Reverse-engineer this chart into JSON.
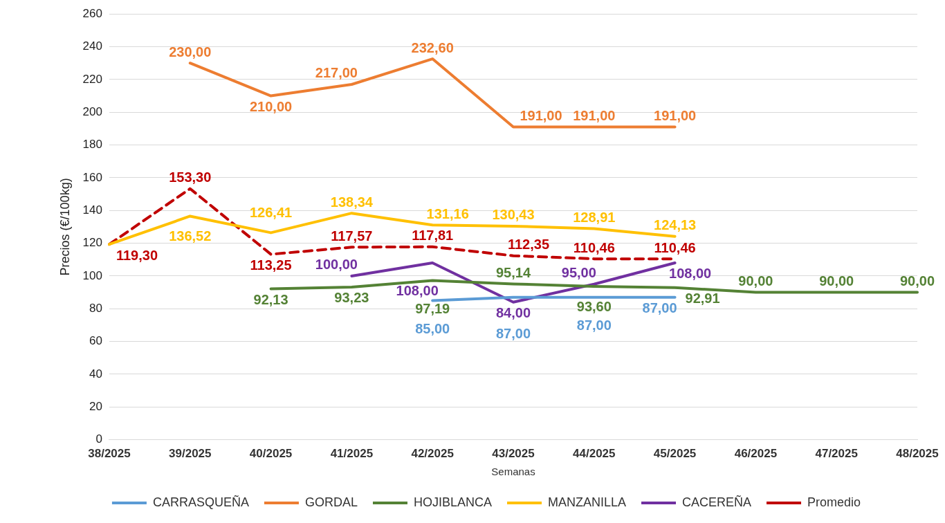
{
  "chart_data": {
    "type": "line",
    "xlabel": "Semanas",
    "ylabel": "Precios (€/100kg)",
    "categories": [
      "38/2025",
      "39/2025",
      "40/2025",
      "41/2025",
      "42/2025",
      "43/2025",
      "44/2025",
      "45/2025",
      "46/2025",
      "47/2025",
      "48/2025"
    ],
    "ylim": [
      0,
      260
    ],
    "yticks": [
      0,
      20,
      40,
      60,
      80,
      100,
      120,
      140,
      160,
      180,
      200,
      220,
      240,
      260
    ],
    "grid": "y",
    "legend": "bottom",
    "marker": "none",
    "series": [
      {
        "name": "CARRASQUEÑA",
        "color": "#5b9bd5",
        "values": [
          null,
          null,
          null,
          null,
          85,
          87,
          87,
          87,
          null,
          null,
          null
        ],
        "value_labels": [
          null,
          null,
          null,
          null,
          "85,00",
          "87,00",
          "87,00",
          "87,00",
          null,
          null,
          null
        ]
      },
      {
        "name": "GORDAL",
        "color": "#ed7d31",
        "values": [
          null,
          230,
          210,
          217,
          232.6,
          191,
          191,
          191,
          null,
          null,
          null
        ],
        "value_labels": [
          null,
          "230,00",
          "210,00",
          "217,00",
          "232,60",
          "191,00",
          "191,00",
          "191,00",
          null,
          null,
          null
        ]
      },
      {
        "name": "HOJIBLANCA",
        "color": "#548235",
        "values": [
          null,
          null,
          92.13,
          93.23,
          97.19,
          95.14,
          93.6,
          92.91,
          90,
          90,
          90
        ],
        "value_labels": [
          null,
          null,
          "92,13",
          "93,23",
          "97,19",
          "95,14",
          "93,60",
          "92,91",
          "90,00",
          "90,00",
          "90,00"
        ]
      },
      {
        "name": "MANZANILLA",
        "color": "#ffc000",
        "values": [
          119.3,
          136.52,
          126.41,
          138.34,
          131.16,
          130.43,
          128.91,
          124.13,
          null,
          null,
          null
        ],
        "value_labels": [
          null,
          "136,52",
          "126,41",
          "138,34",
          "131,16",
          "130,43",
          "128,91",
          "124,13",
          null,
          null,
          null
        ]
      },
      {
        "name": "CACEREÑA",
        "color": "#7030a0",
        "values": [
          null,
          null,
          null,
          100,
          108,
          84,
          95,
          108,
          null,
          null,
          null
        ],
        "value_labels": [
          null,
          null,
          null,
          "100,00",
          "108,00",
          "84,00",
          "95,00",
          "108,00",
          null,
          null,
          null
        ]
      },
      {
        "name": "Promedio",
        "color": "#c00000",
        "line_style": "dashed",
        "values": [
          119.3,
          153.3,
          113.25,
          117.57,
          117.81,
          112.35,
          110.46,
          110.46,
          null,
          null,
          null
        ],
        "value_labels": [
          "119,30",
          "153,30",
          "113,25",
          "117,57",
          "117,81",
          "112,35",
          "110,46",
          "110,46",
          null,
          null,
          null
        ]
      }
    ]
  }
}
